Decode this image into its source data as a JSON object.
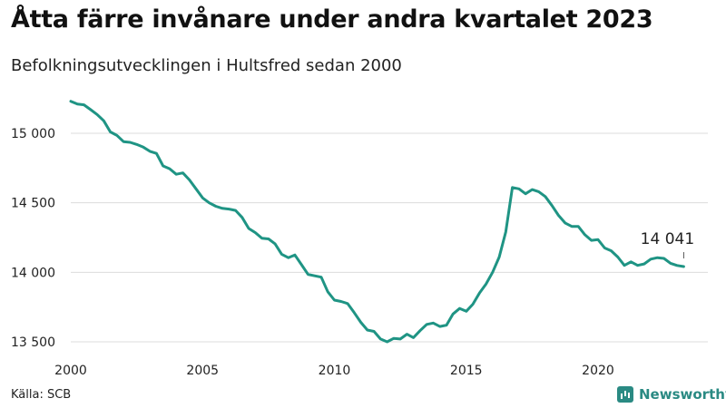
{
  "title": "Åtta färre invånare under andra kvartalet 2023",
  "subtitle": "Befolkningsutvecklingen i Hultsfred sedan 2000",
  "source": "Källa: SCB",
  "brand": {
    "name": "Newsworthy",
    "icon": "newsworthy-logo-icon"
  },
  "colors": {
    "line": "#1f9484",
    "grid": "#dcdcdc",
    "text": "#222222"
  },
  "chart_data": {
    "type": "line",
    "title": "Åtta färre invånare under andra kvartalet 2023",
    "subtitle": "Befolkningsutvecklingen i Hultsfred sedan 2000",
    "xlabel": "",
    "ylabel": "",
    "xlim": [
      2000,
      2024
    ],
    "ylim": [
      13450,
      15300
    ],
    "x_ticks": [
      2000,
      2005,
      2010,
      2015,
      2020
    ],
    "x_tick_labels": [
      "2000",
      "2005",
      "2010",
      "2015",
      "2020"
    ],
    "y_ticks": [
      13500,
      14000,
      14500,
      15000
    ],
    "y_tick_labels": [
      "13 500",
      "14 000",
      "14 500",
      "15 000"
    ],
    "grid": "horizontal",
    "annotation": {
      "x": 2023.25,
      "y": 14041,
      "label": "14 041"
    },
    "series": [
      {
        "x": [
          2000.0,
          2000.25,
          2000.5,
          2000.75,
          2001.0,
          2001.25,
          2001.5,
          2001.75,
          2002.0,
          2002.25,
          2002.5,
          2002.75,
          2003.0,
          2003.25,
          2003.5,
          2003.75,
          2004.0,
          2004.25,
          2004.5,
          2004.75,
          2005.0,
          2005.25,
          2005.5,
          2005.75,
          2006.0,
          2006.25,
          2006.5,
          2006.75,
          2007.0,
          2007.25,
          2007.5,
          2007.75,
          2008.0,
          2008.25,
          2008.5,
          2008.75,
          2009.0,
          2009.25,
          2009.5,
          2009.75,
          2010.0,
          2010.25,
          2010.5,
          2010.75,
          2011.0,
          2011.25,
          2011.5,
          2011.75,
          2012.0,
          2012.25,
          2012.5,
          2012.75,
          2013.0,
          2013.25,
          2013.5,
          2013.75,
          2014.0,
          2014.25,
          2014.5,
          2014.75,
          2015.0,
          2015.25,
          2015.5,
          2015.75,
          2016.0,
          2016.25,
          2016.5,
          2016.75,
          2017.0,
          2017.25,
          2017.5,
          2017.75,
          2018.0,
          2018.25,
          2018.5,
          2018.75,
          2019.0,
          2019.25,
          2019.5,
          2019.75,
          2020.0,
          2020.25,
          2020.5,
          2020.75,
          2021.0,
          2021.25,
          2021.5,
          2021.75,
          2022.0,
          2022.25,
          2022.5,
          2022.75,
          2023.0,
          2023.25
        ],
        "values": [
          15230,
          15210,
          15205,
          15170,
          15135,
          15090,
          15010,
          14985,
          14940,
          14935,
          14920,
          14900,
          14870,
          14855,
          14765,
          14745,
          14705,
          14715,
          14665,
          14600,
          14535,
          14500,
          14475,
          14460,
          14455,
          14445,
          14395,
          14315,
          14285,
          14245,
          14240,
          14205,
          14130,
          14105,
          14125,
          14055,
          13985,
          13975,
          13965,
          13860,
          13800,
          13790,
          13775,
          13710,
          13640,
          13585,
          13575,
          13520,
          13500,
          13525,
          13520,
          13555,
          13530,
          13580,
          13625,
          13635,
          13610,
          13620,
          13700,
          13740,
          13720,
          13770,
          13850,
          13915,
          14000,
          14110,
          14290,
          14610,
          14600,
          14565,
          14595,
          14580,
          14545,
          14480,
          14410,
          14355,
          14330,
          14330,
          14270,
          14230,
          14235,
          14175,
          14155,
          14110,
          14050,
          14075,
          14050,
          14060,
          14095,
          14105,
          14100,
          14065,
          14049,
          14041
        ]
      }
    ]
  }
}
